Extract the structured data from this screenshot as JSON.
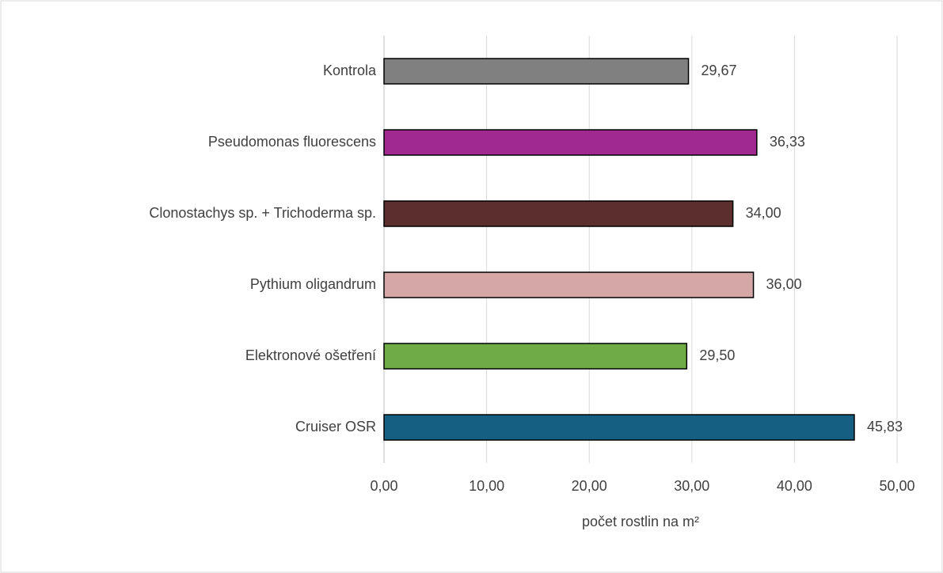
{
  "chart_data": {
    "type": "bar",
    "orientation": "horizontal",
    "x_label": "počet rostlin na m²",
    "categories": [
      "Kontrola",
      "Pseudomonas fluorescens",
      "Clonostachys sp. + Trichoderma sp.",
      "Pythium oligandrum",
      "Elektronové ošetření ",
      "Cruiser OSR"
    ],
    "values": [
      29.67,
      36.33,
      34.0,
      36.0,
      29.5,
      45.83
    ],
    "value_labels": [
      "29,67",
      "36,33",
      "34,00",
      "36,00",
      "29,50",
      "45,83"
    ],
    "colors": [
      "#808080",
      "#a0298f",
      "#5c2e2e",
      "#d5a7a7",
      "#6fac46",
      "#156082"
    ],
    "xlim": [
      0,
      50
    ],
    "xticks": [
      {
        "value": 0,
        "label": "0,00"
      },
      {
        "value": 10,
        "label": "10,00"
      },
      {
        "value": 20,
        "label": "20,00"
      },
      {
        "value": 30,
        "label": "30,00"
      },
      {
        "value": 40,
        "label": "40,00"
      },
      {
        "value": 50,
        "label": "50,00"
      }
    ],
    "grid": true
  }
}
